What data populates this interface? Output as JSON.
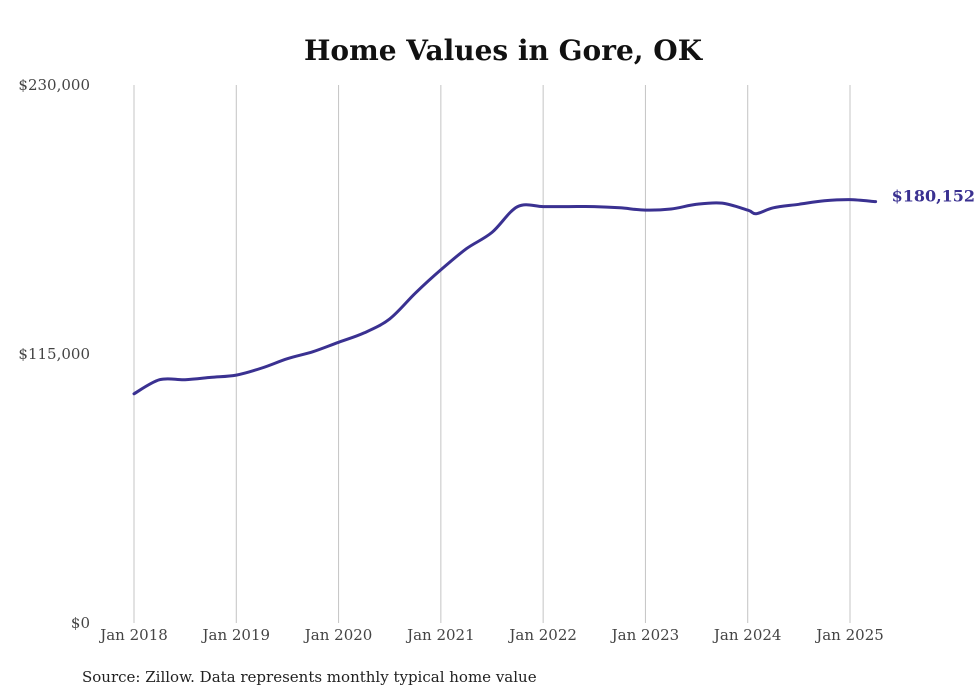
{
  "chart_data": {
    "type": "line",
    "title": "Home Values in Gore, OK",
    "xlabel": "",
    "ylabel": "",
    "ylim": [
      0,
      230000
    ],
    "y_ticks": [
      "$0",
      "$115,000",
      "$230,000"
    ],
    "y_tick_values": [
      0,
      115000,
      230000
    ],
    "x_ticks": [
      "Jan 2018",
      "Jan 2019",
      "Jan 2020",
      "Jan 2021",
      "Jan 2022",
      "Jan 2023",
      "Jan 2024",
      "Jan 2025"
    ],
    "x_tick_values": [
      "2018-01",
      "2019-01",
      "2020-01",
      "2021-01",
      "2022-01",
      "2023-01",
      "2024-01",
      "2025-01"
    ],
    "grid": "vertical",
    "line_color": "#3a3191",
    "end_label": "$180,152",
    "series": [
      {
        "x": [
          "2018-01",
          "2018-04",
          "2018-07",
          "2018-10",
          "2019-01",
          "2019-04",
          "2019-07",
          "2019-10",
          "2020-01",
          "2020-04",
          "2020-07",
          "2020-10",
          "2021-01",
          "2021-04",
          "2021-07",
          "2021-10",
          "2022-01",
          "2022-04",
          "2022-07",
          "2022-10",
          "2023-01",
          "2023-04",
          "2023-07",
          "2023-10",
          "2024-01",
          "2024-02",
          "2024-04",
          "2024-07",
          "2024-10",
          "2025-01",
          "2025-04"
        ],
        "values": [
          98000,
          104000,
          104000,
          105000,
          106000,
          109000,
          113000,
          116000,
          120000,
          124000,
          130000,
          141000,
          151000,
          160000,
          167000,
          178000,
          178000,
          178000,
          178000,
          177500,
          176500,
          177000,
          179000,
          179500,
          176500,
          175000,
          177500,
          179000,
          180500,
          181000,
          180152
        ]
      }
    ]
  },
  "footer": {
    "source": "Source: Zillow. Data represents monthly typical home value"
  }
}
